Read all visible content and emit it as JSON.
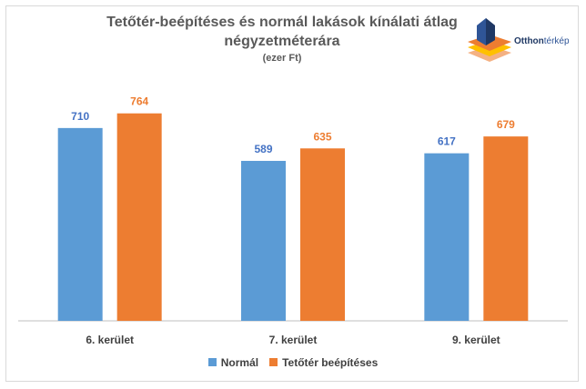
{
  "chart_data": {
    "type": "bar",
    "title": "Tetőtér-beépítéses és normál lakások kínálati átlag négyzetméterára",
    "subtitle": "(ezer Ft)",
    "categories": [
      "6. kerület",
      "7. kerület",
      "9. kerület"
    ],
    "series": [
      {
        "name": "Normál",
        "color": "#5b9bd5",
        "label_color": "#4472c4",
        "values": [
          710,
          589,
          617
        ]
      },
      {
        "name": "Tetőtér beépítéses",
        "color": "#ed7d31",
        "label_color": "#ed7d31",
        "values": [
          764,
          635,
          679
        ]
      }
    ],
    "ylim": [
      0,
      820
    ],
    "grid": false,
    "legend_position": "bottom"
  },
  "logo": {
    "name_bold": "Otthon",
    "name_light": "térkép"
  }
}
